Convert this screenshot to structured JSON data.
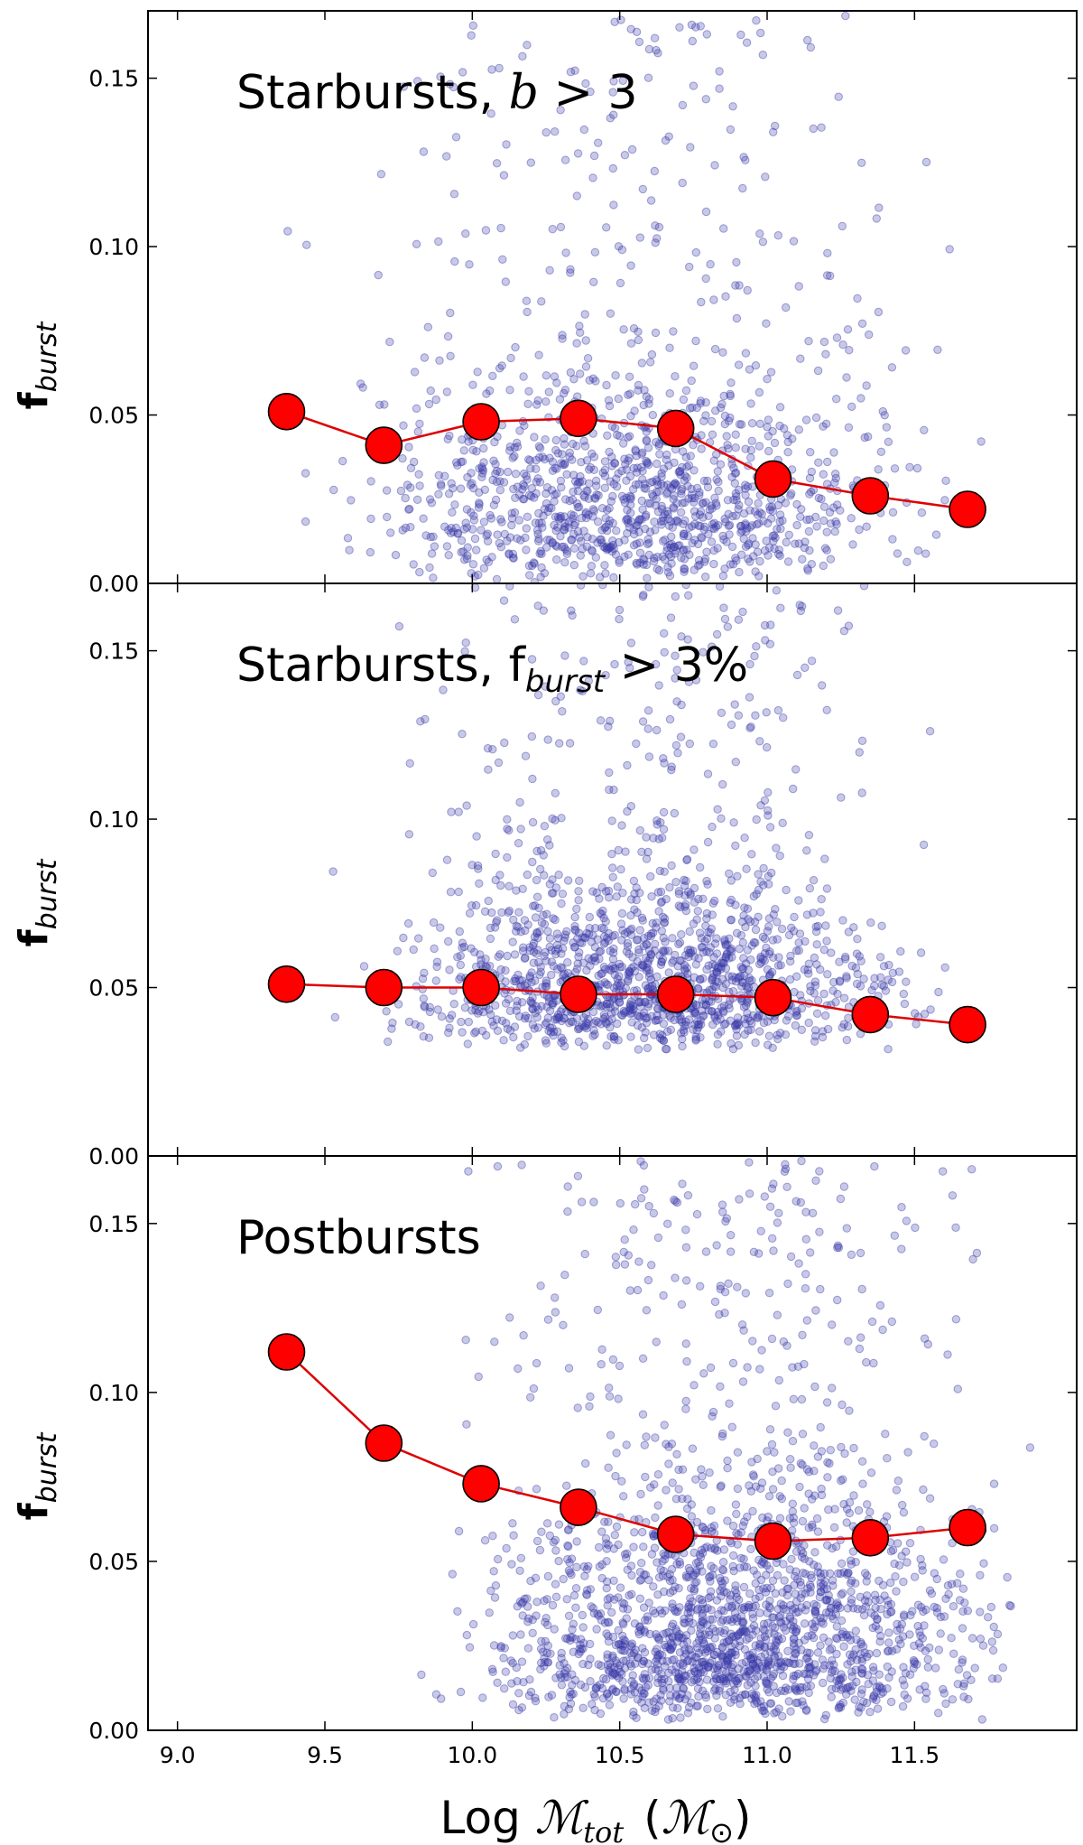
{
  "figure": {
    "xlabel_prefix": "Log ",
    "xlabel_symbol": "ℳ",
    "xlabel_sub": "tot",
    "xlabel_unit_open": "(",
    "xlabel_unit_symbol": "ℳ",
    "xlabel_unit_sub": "⊙",
    "xlabel_unit_close": ")",
    "ylabel_main": "f",
    "ylabel_sub": "burst"
  },
  "colors": {
    "scatter_fill": "#3a3aa8",
    "median_fill": "#ff0000",
    "median_line": "#dd0000",
    "axis": "#000000"
  },
  "chart_data": [
    {
      "type": "scatter",
      "title": "Starbursts, b > 3",
      "title_parts": {
        "text": "Starbursts, ",
        "math": "b",
        "rest": " > 3"
      },
      "xlabel": "",
      "ylabel": "f burst",
      "xlim": [
        8.9,
        12.05
      ],
      "ylim": [
        0.0,
        0.17
      ],
      "xticks": [
        "9.0",
        "9.5",
        "10.0",
        "10.5",
        "11.0",
        "11.5"
      ],
      "yticks": [
        "0.00",
        "0.05",
        "0.10",
        "0.15"
      ],
      "scatter": {
        "n": 1300,
        "seed": 11,
        "fmin": 0.0,
        "center": 0.035,
        "spread": 0.035,
        "xcenter": 10.55,
        "xspread": 0.65
      },
      "series": [
        {
          "x": [
            9.37,
            9.7,
            10.03,
            10.36,
            10.69,
            11.02,
            11.35,
            11.68
          ],
          "y": [
            0.051,
            0.041,
            0.048,
            0.049,
            0.046,
            0.031,
            0.026,
            0.022
          ]
        }
      ]
    },
    {
      "type": "scatter",
      "title": "Starbursts, f burst > 3%",
      "title_parts": {
        "text": "Starbursts, f",
        "sub": "burst",
        "rest": " > 3%"
      },
      "xlabel": "",
      "ylabel": "f burst",
      "xlim": [
        8.9,
        12.05
      ],
      "ylim": [
        0.0,
        0.17
      ],
      "xticks": [
        "9.0",
        "9.5",
        "10.0",
        "10.5",
        "11.0",
        "11.5"
      ],
      "yticks": [
        "0.00",
        "0.05",
        "0.10",
        "0.15"
      ],
      "scatter": {
        "n": 1500,
        "seed": 23,
        "fmin": 0.031,
        "center": 0.035,
        "spread": 0.03,
        "xcenter": 10.6,
        "xspread": 0.6
      },
      "series": [
        {
          "x": [
            9.37,
            9.7,
            10.03,
            10.36,
            10.69,
            11.02,
            11.35,
            11.68
          ],
          "y": [
            0.051,
            0.05,
            0.05,
            0.048,
            0.048,
            0.047,
            0.042,
            0.039
          ]
        }
      ]
    },
    {
      "type": "scatter",
      "title": "Postbursts",
      "title_parts": {
        "text": "Postbursts"
      },
      "xlabel": "Log ℳ tot (ℳ ⊙)",
      "ylabel": "f burst",
      "xlim": [
        8.9,
        12.05
      ],
      "ylim": [
        0.0,
        0.17
      ],
      "xticks": [
        "9.0",
        "9.5",
        "10.0",
        "10.5",
        "11.0",
        "11.5"
      ],
      "yticks": [
        "0.00",
        "0.05",
        "0.10",
        "0.15"
      ],
      "scatter": {
        "n": 1900,
        "seed": 37,
        "fmin": 0.003,
        "center": 0.045,
        "spread": 0.04,
        "xcenter": 10.9,
        "xspread": 0.6
      },
      "series": [
        {
          "x": [
            9.37,
            9.7,
            10.03,
            10.36,
            10.69,
            11.02,
            11.35,
            11.68
          ],
          "y": [
            0.112,
            0.085,
            0.073,
            0.066,
            0.058,
            0.056,
            0.057,
            0.06
          ]
        }
      ]
    }
  ]
}
